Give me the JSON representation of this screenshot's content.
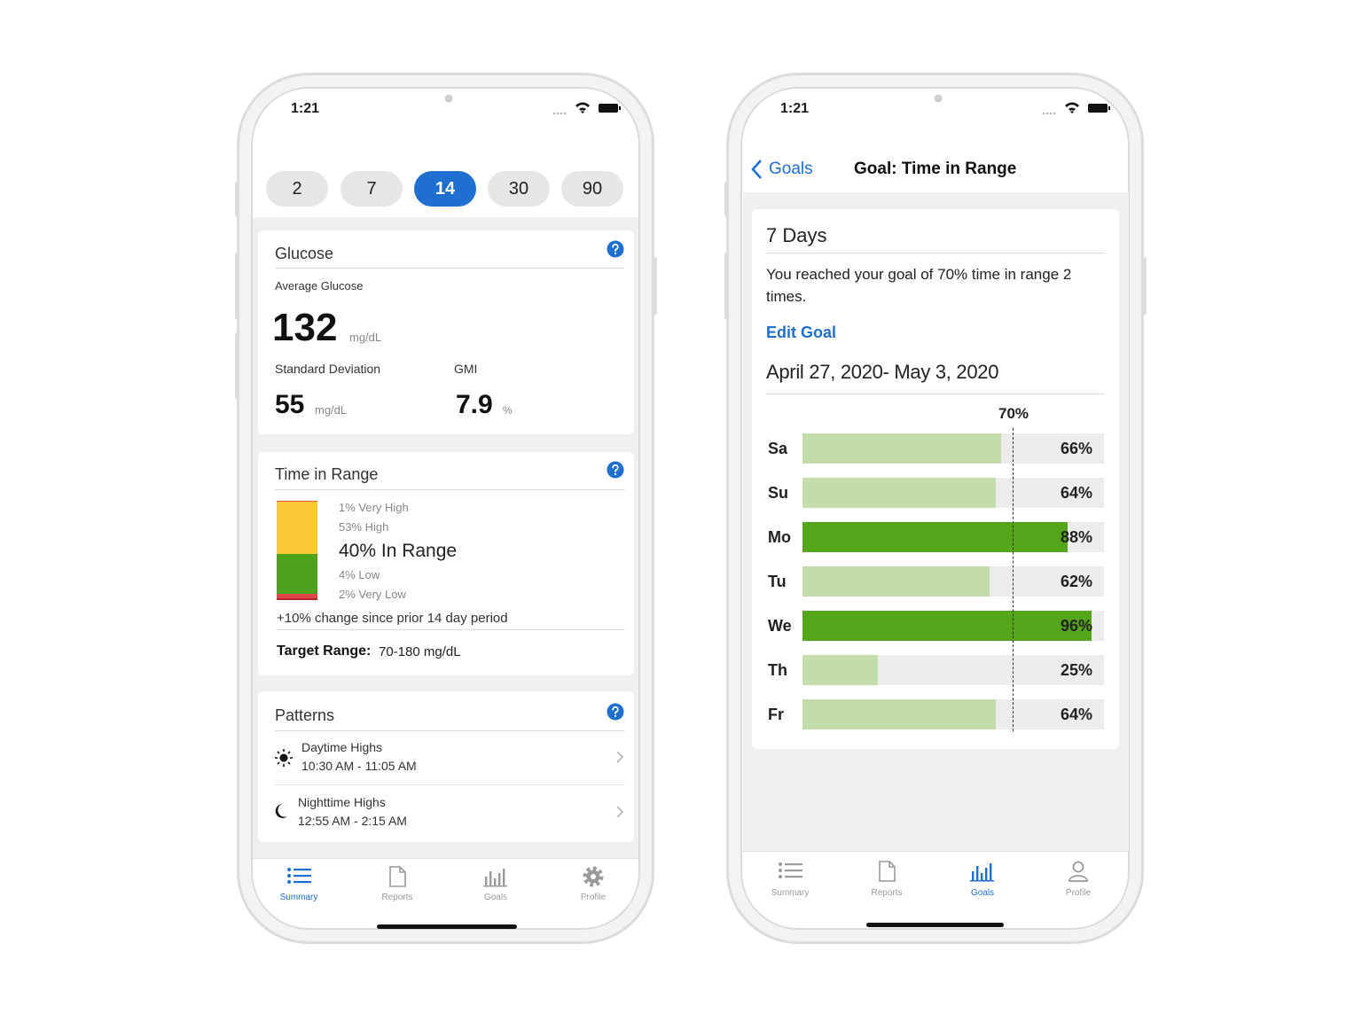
{
  "phones": [
    {
      "status_time": "1:21",
      "period_options": [
        "2",
        "7",
        "14",
        "30",
        "90"
      ],
      "selected_period": "14",
      "glucose": {
        "title": "Glucose",
        "average_label": "Average Glucose",
        "average": "132",
        "average_unit": "mg/dL",
        "sd_label": "Standard Deviation",
        "sd": "55",
        "sd_unit": "mg/dL",
        "gmi_label": "GMI",
        "gmi": "7.9",
        "gmi_unit": "%"
      },
      "time_in_range": {
        "title": "Time in Range",
        "segments": [
          {
            "value": 1,
            "label": "1% Very High",
            "color": "#e8622a"
          },
          {
            "value": 53,
            "label": "53% High",
            "color": "#fcc735"
          },
          {
            "value": 40,
            "label": "40% In Range",
            "color": "#4fa21c"
          },
          {
            "value": 4,
            "label": "4% Low",
            "color": "#e0464a"
          },
          {
            "value": 2,
            "label": "2% Very Low",
            "color": "#b3262b"
          }
        ],
        "change": "+10% change since prior 14 day period",
        "target_label": "Target Range:",
        "target_value": "70-180 mg/dL"
      },
      "patterns": {
        "title": "Patterns",
        "items": [
          {
            "title": "Daytime Highs",
            "time": "10:30 AM - 11:05 AM"
          },
          {
            "title": "Nighttime Highs",
            "time": "12:55 AM - 2:15 AM"
          }
        ]
      },
      "tabs": [
        "Summary",
        "Reports",
        "Goals",
        "Profile"
      ],
      "active_tab": "Summary"
    },
    {
      "status_time": "1:21",
      "back": "Goals",
      "title": "Goal: Time in Range",
      "period": "7 Days",
      "message": "You reached your goal of 70% time in range 2 times.",
      "edit": "Edit Goal",
      "date_range": "April 27, 2020- May 3, 2020",
      "chart": {
        "type": "bar",
        "goal": {
          "value": 70,
          "label": "70%"
        },
        "categories": [
          "Sa",
          "Su",
          "Mo",
          "Tu",
          "We",
          "Th",
          "Fr"
        ],
        "values": [
          66,
          64,
          88,
          62,
          96,
          25,
          64
        ],
        "value_labels": [
          "66%",
          "64%",
          "88%",
          "62%",
          "96%",
          "25%",
          "64%"
        ],
        "xlim": [
          0,
          100
        ],
        "met_color": "#55a51b",
        "unmet_color": "#c3dcab",
        "track_color": "#ececec"
      },
      "tabs": [
        "Summary",
        "Reports",
        "Goals",
        "Profile"
      ],
      "active_tab": "Goals"
    }
  ]
}
